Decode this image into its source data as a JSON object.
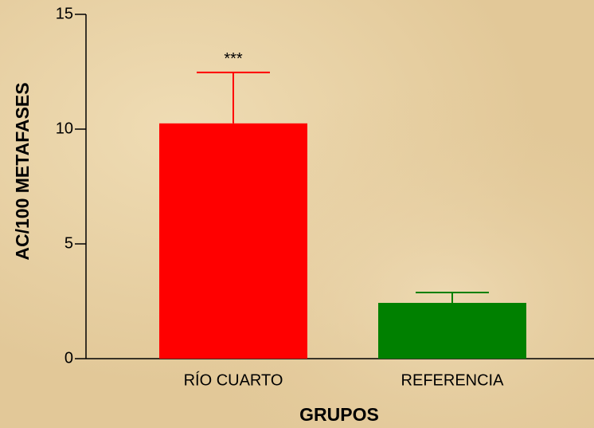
{
  "chart_data": {
    "type": "bar",
    "ylabel": "AC/100 METAFASES",
    "xlabel": "GRUPOS",
    "categories": [
      "RÍO CUARTO",
      "REFERENCIA"
    ],
    "values": [
      10.25,
      2.43
    ],
    "errors": [
      2.22,
      0.45
    ],
    "colors": [
      "#ff0000",
      "#008000"
    ],
    "annotations": [
      "***"
    ],
    "ylim": [
      0,
      15
    ],
    "yticks": [
      0,
      5,
      10,
      15
    ]
  }
}
